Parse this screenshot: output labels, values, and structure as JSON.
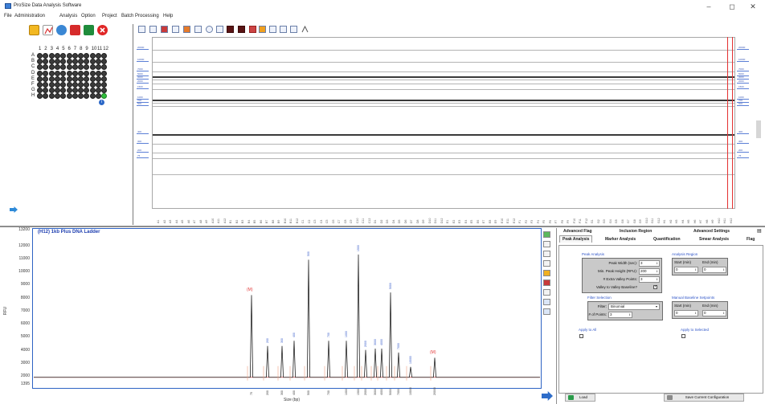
{
  "window": {
    "title": "ProSize Data Analysis Software",
    "minimize": "–",
    "restore": "◻",
    "close": "✕"
  },
  "menu": [
    "File",
    "Administration",
    "Analysis",
    "Option",
    "Project",
    "Batch Processing",
    "Help"
  ],
  "plate": {
    "columns": [
      "1",
      "2",
      "3",
      "4",
      "5",
      "6",
      "7",
      "8",
      "9",
      "10",
      "11",
      "12"
    ],
    "rows": [
      "A",
      "B",
      "C",
      "D",
      "E",
      "F",
      "G",
      "H"
    ],
    "active_well": "H12",
    "info": "i"
  },
  "gel": {
    "ladder_labels": [
      "20000",
      "10000",
      "7000",
      "5000",
      "3000",
      "2000",
      "1500",
      "1000",
      "700",
      "500",
      "400",
      "300",
      "200",
      "75"
    ],
    "lanes": [
      "A1",
      "A2",
      "A3",
      "A4",
      "A5",
      "A6",
      "A7",
      "A8",
      "A9",
      "A10",
      "A11",
      "A12",
      "B1",
      "B2",
      "B3",
      "B4",
      "B5",
      "B6",
      "B7",
      "B8",
      "B9",
      "B10",
      "B11",
      "B12",
      "C1",
      "C2",
      "C3",
      "C4",
      "C5",
      "C6",
      "C7",
      "C8",
      "C9",
      "C10",
      "C11",
      "C12",
      "D1",
      "D2",
      "D3",
      "D4",
      "D5",
      "D6",
      "D7",
      "D8",
      "D9",
      "D10",
      "D11",
      "D12",
      "E1",
      "E2",
      "E3",
      "E4",
      "E5",
      "E6",
      "E7",
      "E8",
      "E9",
      "E10",
      "E11",
      "E12",
      "F1",
      "F2",
      "F3",
      "F4",
      "F5",
      "F6",
      "F7",
      "F8",
      "F9",
      "F10",
      "F11",
      "F12",
      "G1",
      "G2",
      "G3",
      "G4",
      "G5",
      "G6",
      "G7",
      "G8",
      "G9",
      "G10",
      "G11",
      "G12",
      "H1",
      "H2",
      "H3",
      "H4",
      "H5",
      "H6",
      "H7",
      "H8",
      "H9",
      "H10",
      "H11",
      "H12"
    ]
  },
  "electropherogram": {
    "title": "(H12) 1kb Plus DNA Ladder",
    "ylabel": "RFU",
    "xlabel": "Size (bp)",
    "yticks": [
      "13200",
      "12000",
      "11000",
      "10000",
      "9000",
      "8000",
      "7000",
      "6000",
      "5000",
      "4000",
      "3000",
      "2000",
      "1395"
    ],
    "lower_marker": "(M)",
    "upper_marker": "(M)",
    "peak_labels": [
      "200",
      "300",
      "400",
      "500",
      "700",
      "1000",
      "1500",
      "2000",
      "3000",
      "4000",
      "5000",
      "7000",
      "10000"
    ],
    "size_ticks": [
      "75",
      "200",
      "300",
      "400",
      "500",
      "700",
      "1000",
      "1500",
      "2000",
      "3000",
      "4000",
      "5000",
      "7000",
      "10000",
      "20000"
    ]
  },
  "chart_data": {
    "type": "line",
    "title": "(H12) 1kb Plus DNA Ladder",
    "xlabel": "Size (bp)",
    "ylabel": "RFU",
    "ylim": [
      1395,
      13200
    ],
    "x": [
      "75",
      "200",
      "300",
      "400",
      "500",
      "700",
      "1000",
      "1500",
      "2000",
      "3000",
      "4000",
      "5000",
      "7000",
      "10000",
      "20000"
    ],
    "series": [
      {
        "values": [
          8200,
          4300,
          4300,
          4700,
          10900,
          4700,
          4700,
          11300,
          4000,
          4100,
          4100,
          8400,
          3800,
          2700,
          3400
        ]
      }
    ]
  },
  "settings": {
    "tabs_row1": [
      "Advanced Flag",
      "Inclusion Region",
      "Advanced Settings"
    ],
    "tabs_row2": [
      "Peak Analysis",
      "Marker Analysis",
      "Quantification",
      "Smear Analysis",
      "Flag"
    ],
    "peak_analysis_title": "Peak Analysis",
    "peak_width_label": "Peak Width (sec):",
    "peak_width_value": "3",
    "min_height_label": "Min. Peak Height (RFU):",
    "min_height_value": "200",
    "valley_points_label": "# Extra Valley Points:",
    "valley_points_value": "3",
    "valley_baseline_label": "Valley to Valley Baseline?",
    "filter_title": "Filter Selection",
    "filter_label": "Filter:",
    "filter_value": "Binomial",
    "points_label": "# of Points:",
    "points_value": "3",
    "analysis_region_title": "Analysis Region",
    "start_label": "Start (min)",
    "end_label": "End (min)",
    "region_start": "0",
    "region_end": "0",
    "baseline_title": "Manual Baseline Setpoints",
    "baseline_start": "0",
    "baseline_end": "0",
    "apply_all": "Apply to All",
    "apply_selected": "Apply to Selected",
    "load_button": "Load",
    "save_button": "Save Current Configuration"
  },
  "colors": {
    "accent_blue": "#2e63c4",
    "trace": "#222222",
    "red": "#e23b3b",
    "well": "#3b3b3b",
    "well_active": "#2fbf3b"
  }
}
